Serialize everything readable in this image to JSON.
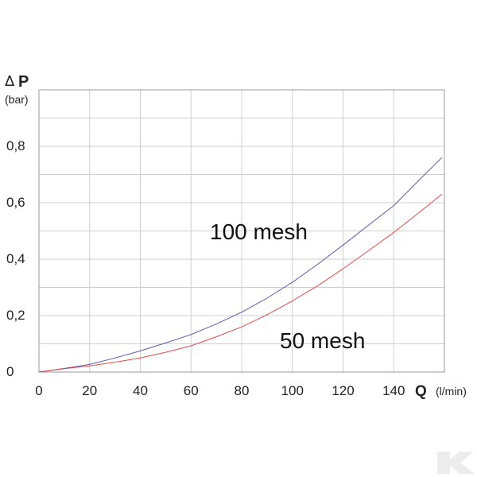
{
  "chart_data": {
    "type": "line",
    "title": "",
    "ylabel_symbol": "Δ",
    "ylabel_bold": "P",
    "ylabel_unit": "(bar)",
    "xlabel_bold": "Q",
    "xlabel_unit": "(l/min)",
    "xlim": [
      0,
      160
    ],
    "ylim": [
      0,
      1.0
    ],
    "grid": true,
    "xticks": [
      0,
      20,
      40,
      60,
      80,
      100,
      120,
      140
    ],
    "xtick_labels": [
      "0",
      "20",
      "40",
      "60",
      "80",
      "100",
      "120",
      "140"
    ],
    "yticks": [
      0,
      0.2,
      0.4,
      0.6,
      0.8
    ],
    "ytick_labels": [
      "0",
      "0,2",
      "0,4",
      "0,6",
      "0,8"
    ],
    "series": [
      {
        "name": "100 mesh",
        "color": "#5a5aa8",
        "x": [
          0,
          10,
          20,
          30,
          40,
          50,
          60,
          70,
          80,
          90,
          100,
          110,
          120,
          130,
          140,
          150,
          159
        ],
        "y": [
          0.0,
          0.013,
          0.027,
          0.05,
          0.075,
          0.103,
          0.133,
          0.17,
          0.212,
          0.262,
          0.318,
          0.382,
          0.45,
          0.52,
          0.59,
          0.68,
          0.76
        ]
      },
      {
        "name": "50 mesh",
        "color": "#e64a4a",
        "x": [
          0,
          10,
          20,
          30,
          40,
          50,
          60,
          70,
          80,
          90,
          100,
          110,
          120,
          130,
          140,
          150,
          159
        ],
        "y": [
          0.0,
          0.012,
          0.022,
          0.035,
          0.05,
          0.07,
          0.093,
          0.125,
          0.16,
          0.203,
          0.252,
          0.306,
          0.366,
          0.43,
          0.495,
          0.565,
          0.63
        ]
      }
    ],
    "annotations": [
      "100 mesh",
      "50 mesh"
    ]
  },
  "logo": {
    "icon": "k-logo-icon",
    "color": "#ececec"
  }
}
